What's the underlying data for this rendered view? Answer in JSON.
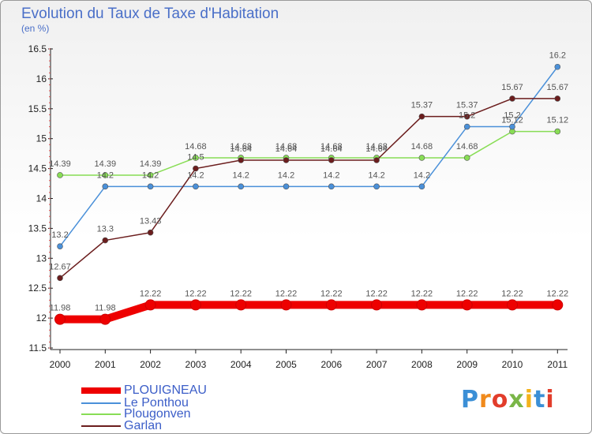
{
  "chart_data": {
    "type": "line",
    "title": "Evolution du Taux de Taxe d'Habitation",
    "subtitle": "(en %)",
    "x": [
      "2000",
      "2001",
      "2002",
      "2003",
      "2004",
      "2005",
      "2006",
      "2007",
      "2008",
      "2009",
      "2010",
      "2011"
    ],
    "ylim": [
      11.5,
      16.5
    ],
    "yticks": [
      "11.5",
      "12",
      "12.5",
      "13",
      "13.5",
      "14",
      "14.5",
      "15",
      "15.5",
      "16",
      "16.5"
    ],
    "grid": false,
    "legend_position": "bottom",
    "series": [
      {
        "name": "PLOUIGNEAU",
        "color": "#ee0000",
        "values": [
          11.98,
          11.98,
          12.22,
          12.22,
          12.22,
          12.22,
          12.22,
          12.22,
          12.22,
          12.22,
          12.22,
          12.22
        ],
        "labels": [
          "11.98",
          "11.98",
          "12.22",
          "12.22",
          "12.22",
          "12.22",
          "12.22",
          "12.22",
          "12.22",
          "12.22",
          "12.22",
          "12.22"
        ]
      },
      {
        "name": "Le Ponthou",
        "color": "#4a90d9",
        "values": [
          13.2,
          14.2,
          14.2,
          14.2,
          14.2,
          14.2,
          14.2,
          14.2,
          14.2,
          15.2,
          15.2,
          16.2
        ],
        "labels": [
          "13.2",
          "14.2",
          "14.2",
          "14.2",
          "14.2",
          "14.2",
          "14.2",
          "14.2",
          "14.2",
          "15.2",
          "15.2",
          "16.2"
        ]
      },
      {
        "name": "Plougonven",
        "color": "#88dd55",
        "values": [
          14.39,
          14.39,
          14.39,
          14.68,
          14.68,
          14.68,
          14.68,
          14.68,
          14.68,
          14.68,
          15.12,
          15.12
        ],
        "labels": [
          "14.39",
          "14.39",
          "14.39",
          "14.68",
          "14.68",
          "14.68",
          "14.68",
          "14.68",
          "14.68",
          "14.68",
          "15.12",
          "15.12"
        ]
      },
      {
        "name": "Garlan",
        "color": "#6b1d1d",
        "values": [
          12.67,
          13.3,
          13.43,
          14.5,
          14.64,
          14.64,
          14.64,
          14.64,
          15.37,
          15.37,
          15.67,
          15.67
        ],
        "labels": [
          "12.67",
          "13.3",
          "13.43",
          "14.5",
          "14.64",
          "14.64",
          "14.64",
          "14.64",
          "15.37",
          "15.37",
          "15.67",
          "15.67"
        ]
      }
    ]
  },
  "logo_text": "Proxiti",
  "logo_colors": [
    "#3b8fd6",
    "#f08a1c",
    "#e23d2b",
    "#7ab648",
    "#f3b21b",
    "#3b8fd6",
    "#e23d2b"
  ]
}
